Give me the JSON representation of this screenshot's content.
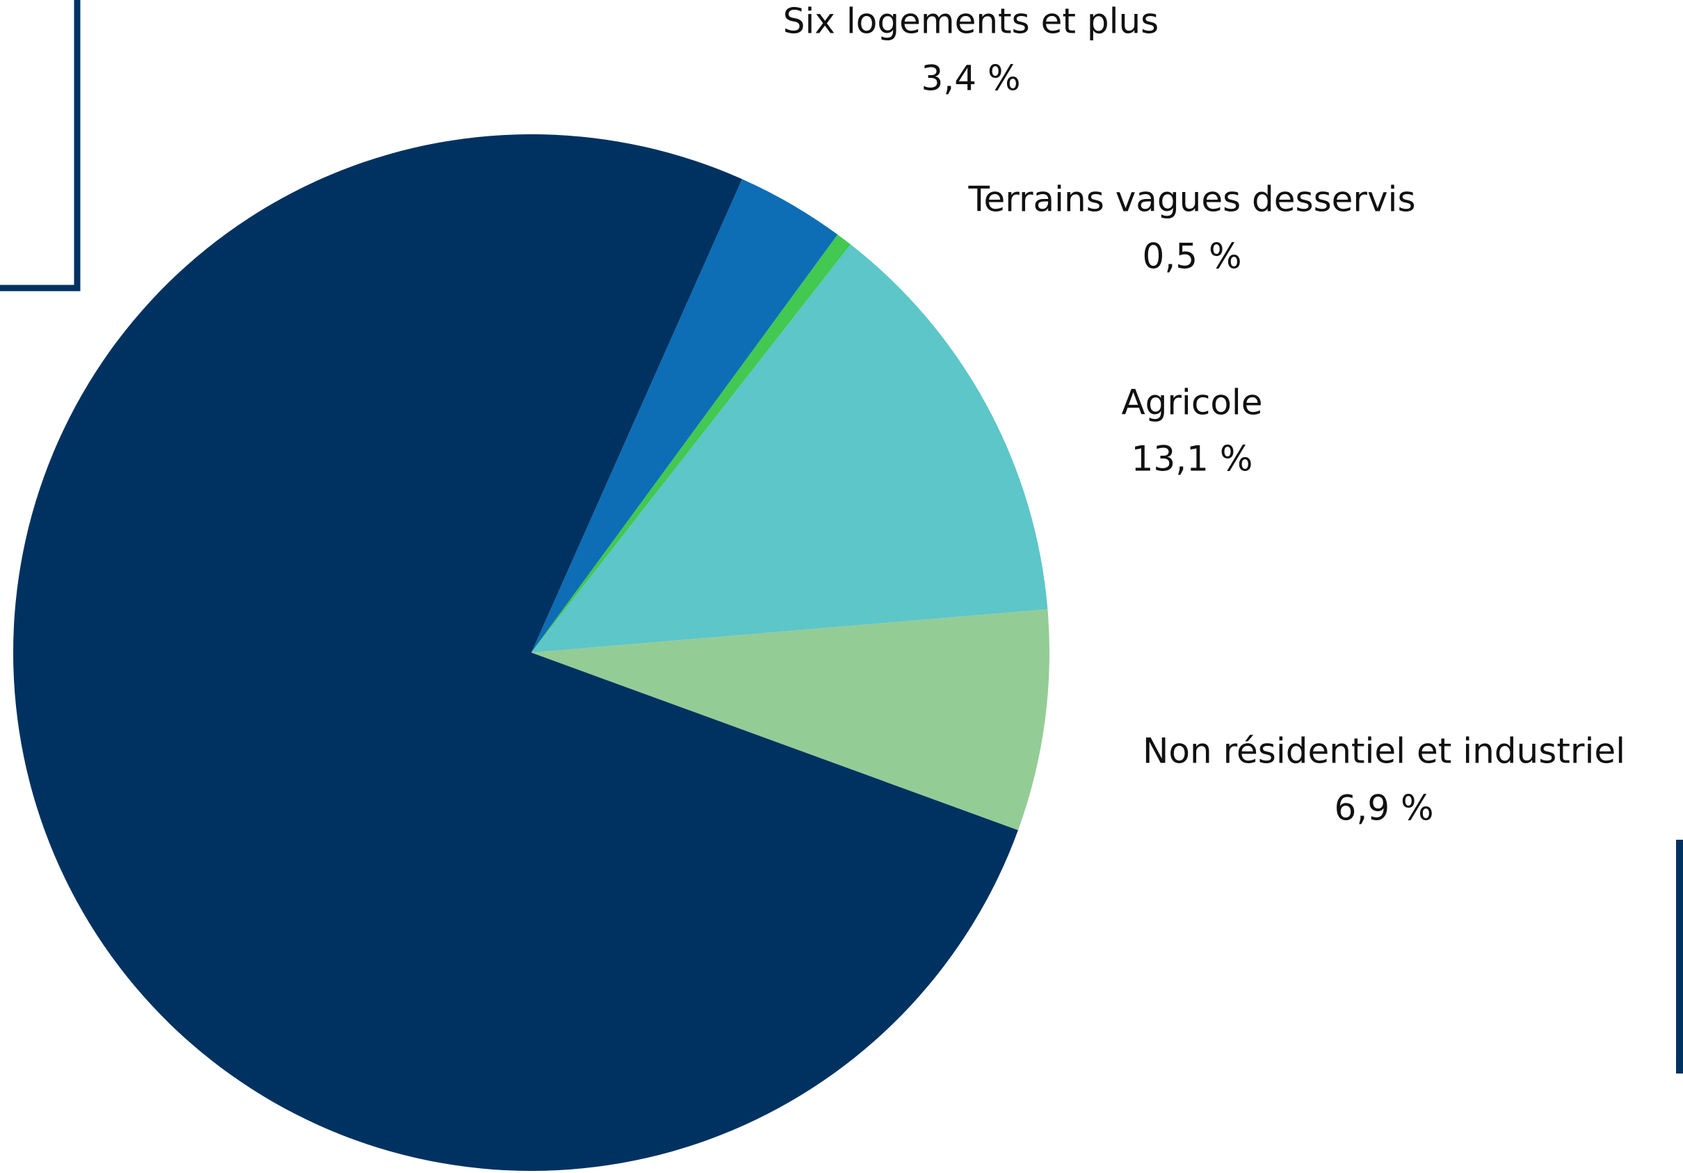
{
  "chart_data": {
    "type": "pie",
    "categories": [
      "Six logements et plus",
      "Terrains vagues desservis",
      "Agricole",
      "Non résidentiel et industriel",
      null
    ],
    "values": [
      3.4,
      0.5,
      13.1,
      6.9,
      76.1
    ],
    "value_labels": [
      "3,4 %",
      "0,5 %",
      "13,1 %",
      "6,9 %",
      null
    ],
    "colors": [
      "#0d6eb5",
      "#43c851",
      "#5cc6c9",
      "#94cc96",
      "#003261"
    ]
  }
}
